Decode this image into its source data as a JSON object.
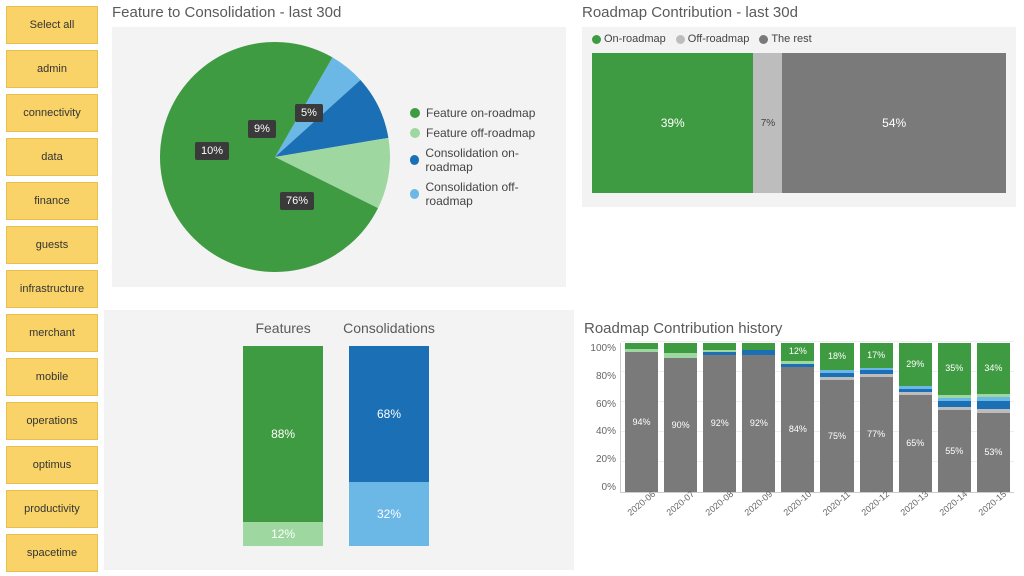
{
  "sidebar": {
    "items": [
      {
        "label": "Select all"
      },
      {
        "label": "admin"
      },
      {
        "label": "connectivity"
      },
      {
        "label": "data"
      },
      {
        "label": "finance"
      },
      {
        "label": "guests"
      },
      {
        "label": "infrastructure"
      },
      {
        "label": "merchant"
      },
      {
        "label": "mobile"
      },
      {
        "label": "operations"
      },
      {
        "label": "optimus"
      },
      {
        "label": "productivity"
      },
      {
        "label": "spacetime"
      }
    ],
    "item_bg": "#f9d367",
    "item_border": "#e6c14e"
  },
  "pie": {
    "title": "Feature to Consolidation - last 30d",
    "type": "pie",
    "background": "#f3f3f3",
    "slices": [
      {
        "name": "Feature on-roadmap",
        "value": 76,
        "color": "#3f9b42",
        "label": "76%"
      },
      {
        "name": "Feature off-roadmap",
        "value": 10,
        "color": "#9ed79f",
        "label": "10%"
      },
      {
        "name": "Consolidation on-roadmap",
        "value": 9,
        "color": "#1a6fb5",
        "label": "9%"
      },
      {
        "name": "Consolidation off-roadmap",
        "value": 5,
        "color": "#6bb7e6",
        "label": "5%"
      }
    ],
    "legend_items": [
      {
        "label": "Feature on-roadmap",
        "color": "#3f9b42"
      },
      {
        "label": "Feature off-roadmap",
        "color": "#9ed79f"
      },
      {
        "label": "Consolidation on-roadmap",
        "color": "#1a6fb5"
      },
      {
        "label": "Consolidation off-roadmap",
        "color": "#6bb7e6"
      }
    ]
  },
  "stacked_bars": {
    "background": "#f3f3f3",
    "columns": [
      {
        "title": "Features",
        "segments": [
          {
            "value": 12,
            "label": "12%",
            "color": "#9ed79f"
          },
          {
            "value": 88,
            "label": "88%",
            "color": "#3f9b42"
          }
        ]
      },
      {
        "title": "Consolidations",
        "segments": [
          {
            "value": 32,
            "label": "32%",
            "color": "#6bb7e6"
          },
          {
            "value": 68,
            "label": "68%",
            "color": "#1a6fb5"
          }
        ]
      }
    ]
  },
  "contrib": {
    "title": "Roadmap Contribution - last 30d",
    "background": "#f3f3f3",
    "legend": [
      {
        "label": "On-roadmap",
        "color": "#3f9b42"
      },
      {
        "label": "Off-roadmap",
        "color": "#bdbdbd"
      },
      {
        "label": "The rest",
        "color": "#7a7a7a"
      }
    ],
    "segments": [
      {
        "value": 39,
        "label": "39%",
        "color": "#3f9b42"
      },
      {
        "value": 7,
        "label": "7%",
        "color": "#bdbdbd"
      },
      {
        "value": 54,
        "label": "54%",
        "color": "#7a7a7a"
      }
    ]
  },
  "history": {
    "title": "Roadmap Contribution history",
    "type": "stacked-bar",
    "ylim": [
      0,
      100
    ],
    "ytick_step": 20,
    "yticks": [
      "100%",
      "80%",
      "60%",
      "40%",
      "20%",
      "0%"
    ],
    "colors": {
      "rest": "#7a7a7a",
      "off_roadmap": "#bdbdbd",
      "cons_on": "#1a6fb5",
      "cons_off": "#6bb7e6",
      "feat_off": "#9ed79f",
      "feat_on": "#3f9b42"
    },
    "columns": [
      {
        "x": "2020-06",
        "rest": 94,
        "off": 0,
        "cons_on": 0,
        "cons_off": 0,
        "feat_off": 2,
        "feat_on": 4,
        "rest_label": "94%",
        "top_label": ""
      },
      {
        "x": "2020-07",
        "rest": 90,
        "off": 0,
        "cons_on": 0,
        "cons_off": 0,
        "feat_off": 3,
        "feat_on": 7,
        "rest_label": "90%",
        "top_label": ""
      },
      {
        "x": "2020-08",
        "rest": 92,
        "off": 0,
        "cons_on": 2,
        "cons_off": 0,
        "feat_off": 1,
        "feat_on": 5,
        "rest_label": "92%",
        "top_label": ""
      },
      {
        "x": "2020-09",
        "rest": 92,
        "off": 0,
        "cons_on": 3,
        "cons_off": 0,
        "feat_off": 0,
        "feat_on": 5,
        "rest_label": "92%",
        "top_label": ""
      },
      {
        "x": "2020-10",
        "rest": 84,
        "off": 0,
        "cons_on": 2,
        "cons_off": 0,
        "feat_off": 2,
        "feat_on": 12,
        "rest_label": "84%",
        "top_label": "12%"
      },
      {
        "x": "2020-11",
        "rest": 75,
        "off": 2,
        "cons_on": 3,
        "cons_off": 2,
        "feat_off": 0,
        "feat_on": 18,
        "rest_label": "75%",
        "top_label": "18%"
      },
      {
        "x": "2020-12",
        "rest": 77,
        "off": 2,
        "cons_on": 3,
        "cons_off": 1,
        "feat_off": 0,
        "feat_on": 17,
        "rest_label": "77%",
        "top_label": "17%"
      },
      {
        "x": "2020-13",
        "rest": 65,
        "off": 2,
        "cons_on": 2,
        "cons_off": 2,
        "feat_off": 0,
        "feat_on": 29,
        "rest_label": "65%",
        "top_label": "29%"
      },
      {
        "x": "2020-14",
        "rest": 55,
        "off": 2,
        "cons_on": 4,
        "cons_off": 2,
        "feat_off": 2,
        "feat_on": 35,
        "rest_label": "55%",
        "top_label": "35%"
      },
      {
        "x": "2020-15",
        "rest": 53,
        "off": 3,
        "cons_on": 5,
        "cons_off": 3,
        "feat_off": 2,
        "feat_on": 34,
        "rest_label": "53%",
        "top_label": "34%"
      }
    ]
  }
}
